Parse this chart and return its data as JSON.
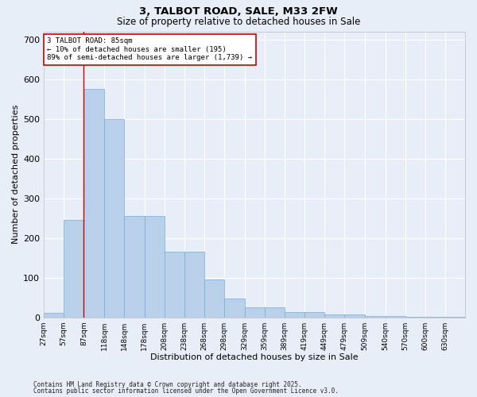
{
  "title1": "3, TALBOT ROAD, SALE, M33 2FW",
  "title2": "Size of property relative to detached houses in Sale",
  "xlabel": "Distribution of detached houses by size in Sale",
  "ylabel": "Number of detached properties",
  "bins_left": [
    27,
    57,
    87,
    118,
    148,
    178,
    208,
    238,
    268,
    298,
    329,
    359,
    389,
    419,
    449,
    479,
    509,
    540,
    570,
    600,
    630
  ],
  "bar_values": [
    12,
    245,
    575,
    500,
    255,
    255,
    165,
    165,
    95,
    48,
    25,
    25,
    14,
    13,
    8,
    8,
    4,
    3,
    2,
    2,
    1
  ],
  "bar_color": "#b8d0ea",
  "bar_edge_color": "#7aacd4",
  "bg_color": "#e8eef8",
  "grid_color": "#ffffff",
  "property_line_x": 87,
  "annotation_text": "3 TALBOT ROAD: 85sqm\n← 10% of detached houses are smaller (195)\n89% of semi-detached houses are larger (1,739) →",
  "annotation_box_color": "#ffffff",
  "annotation_box_edge": "#cc0000",
  "vline_color": "#cc0000",
  "footer1": "Contains HM Land Registry data © Crown copyright and database right 2025.",
  "footer2": "Contains public sector information licensed under the Open Government Licence v3.0.",
  "ylim": [
    0,
    720
  ],
  "yticks": [
    0,
    100,
    200,
    300,
    400,
    500,
    600,
    700
  ]
}
